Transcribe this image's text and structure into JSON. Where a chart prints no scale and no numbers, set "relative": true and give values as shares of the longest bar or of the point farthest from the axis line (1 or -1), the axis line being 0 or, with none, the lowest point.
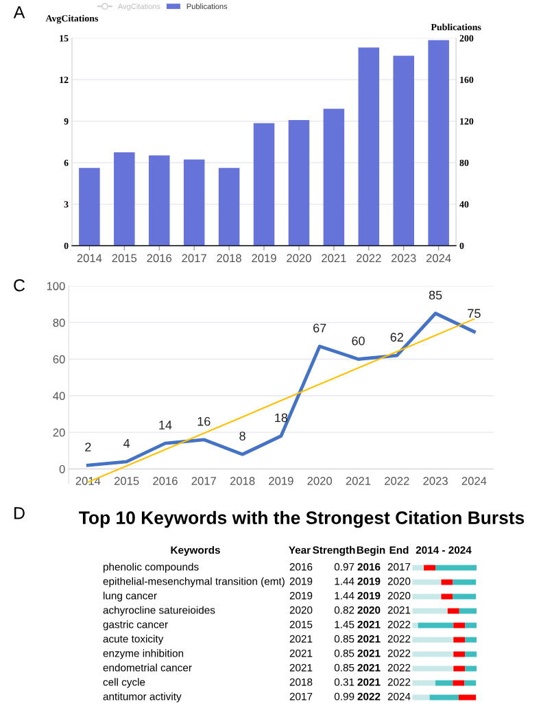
{
  "chart_data": [
    {
      "type": "bar",
      "annotations": [
        "A"
      ],
      "categories": [
        "2014",
        "2015",
        "2016",
        "2017",
        "2018",
        "2019",
        "2020",
        "2021",
        "2022",
        "2023",
        "2024"
      ],
      "series": [
        {
          "name": "AvgCitations",
          "type": "line",
          "axis": "y",
          "color": "#cccccc",
          "values": [
            null,
            null,
            null,
            null,
            null,
            null,
            null,
            null,
            null,
            null,
            null
          ]
        },
        {
          "name": "Publications",
          "type": "bar",
          "axis": "y2",
          "color": "#6674d9",
          "values": [
            75,
            90,
            87,
            83,
            75,
            118,
            121,
            132,
            191,
            183,
            198
          ]
        }
      ],
      "ylabel": "AvgCitations",
      "y2label": "Publications",
      "ylim": [
        0,
        15
      ],
      "yticks": [
        0,
        3,
        6,
        9,
        12,
        15
      ],
      "y2lim": [
        0,
        200
      ],
      "y2ticks": [
        0,
        40,
        80,
        120,
        160,
        200
      ],
      "grid": "y",
      "legend": "top left",
      "marker": "circle"
    },
    {
      "type": "line",
      "annotations": [
        "C"
      ],
      "categories": [
        "2014",
        "2015",
        "2016",
        "2017",
        "2018",
        "2019",
        "2020",
        "2021",
        "2022",
        "2023",
        "2024"
      ],
      "series": [
        {
          "color": "#4472c4",
          "values": [
            2,
            4,
            14,
            16,
            8,
            18,
            67,
            60,
            62,
            85,
            75
          ],
          "value_labels": [
            "2",
            "4",
            "14",
            "16",
            "8",
            "18",
            "67",
            "60",
            "62",
            "85",
            "75"
          ]
        },
        {
          "color": "#ffc000",
          "values": [
            -7.2,
            1.7,
            10.6,
            19.5,
            28.4,
            37.4,
            46.3,
            55.2,
            64.1,
            73.0,
            81.9
          ]
        }
      ],
      "ylim": [
        -8,
        100
      ],
      "yticks": [
        0,
        20,
        40,
        60,
        80,
        100
      ],
      "grid": "y"
    },
    {
      "type": "bar",
      "orientation": "horizontal",
      "stacked": true,
      "title": "Top 10 Keywords with the Strongest Citation Bursts",
      "categories": [
        "phenolic compounds",
        "epithelial-mesenchymal transition (emt)",
        "lung cancer",
        "achyrocline satureioides",
        "gastric cancer",
        "acute toxicity",
        "enzyme inhibition",
        "endometrial cancer",
        "cell cycle",
        "antitumor activity"
      ],
      "relative": true,
      "series": [
        {
          "color": "#c9e9e9",
          "values": [
            0.18,
            0.45,
            0.45,
            0.55,
            0.09,
            0.64,
            0.64,
            0.64,
            0.36,
            0.27
          ]
        },
        {
          "color": "#3dbdbd",
          "values": [
            0,
            0,
            0,
            0,
            0.55,
            0,
            0,
            0,
            0.27,
            0.45
          ]
        },
        {
          "color": "#ff0000",
          "values": [
            0.18,
            0.18,
            0.18,
            0.18,
            0.18,
            0.18,
            0.18,
            0.18,
            0.18,
            0.27
          ]
        },
        {
          "color": "#3dbdbd",
          "values": [
            0.64,
            0.36,
            0.36,
            0.27,
            0.18,
            0.18,
            0.18,
            0.18,
            0.18,
            0
          ]
        }
      ],
      "tick_labels": false,
      "annotations": [
        "D",
        "Keywords",
        "Year",
        "Strength",
        "Begin",
        "End",
        "2014 - 2024",
        "2016",
        "0.97",
        "2016",
        "2017",
        "2019",
        "1.44",
        "2019",
        "2020",
        "2019",
        "1.44",
        "2019",
        "2020",
        "2020",
        "0.82",
        "2020",
        "2021",
        "2015",
        "1.45",
        "2021",
        "2022",
        "2021",
        "0.85",
        "2021",
        "2022",
        "2021",
        "0.85",
        "2021",
        "2022",
        "2021",
        "0.85",
        "2021",
        "2022",
        "2018",
        "0.31",
        "2021",
        "2022",
        "2017",
        "0.99",
        "2022",
        "2024"
      ]
    }
  ]
}
